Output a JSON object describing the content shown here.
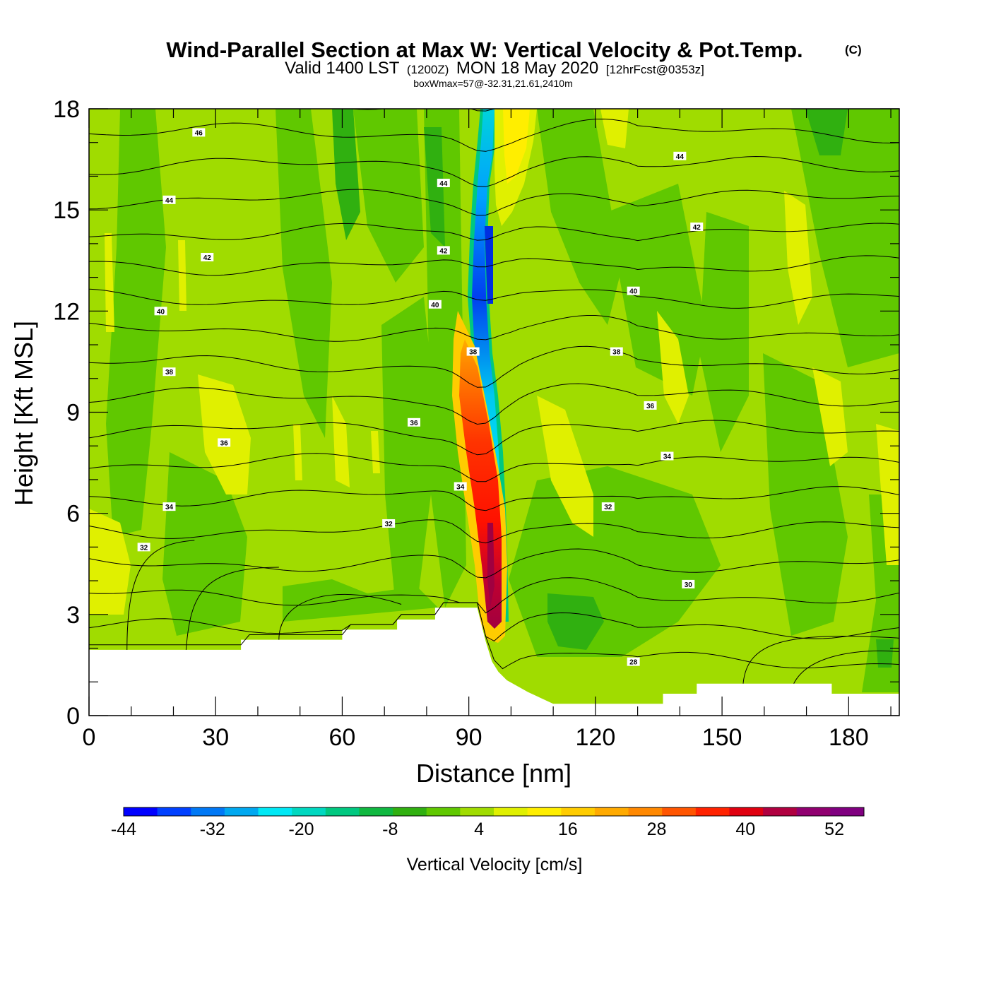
{
  "chart_data": {
    "type": "heatmap",
    "title": "Wind-Parallel Section at Max W: Vertical Velocity & Pot.Temp.",
    "title_mark": "(C)",
    "subtitle_parts": [
      "Valid 1400 LST",
      "(1200Z)",
      "MON 18 May 2020",
      "[12hrFcst@0353z]"
    ],
    "subtitle2": "boxWmax=57@-32.31,21.61,2410m",
    "xlabel": "Distance [nm]",
    "ylabel": "Height [Kft MSL]",
    "xlim": [
      0,
      192
    ],
    "ylim": [
      0,
      18
    ],
    "xticks": [
      0,
      30,
      60,
      90,
      120,
      150,
      180
    ],
    "yticks": [
      0,
      3,
      6,
      9,
      12,
      15,
      18
    ],
    "colorbar": {
      "label": "Vertical Velocity [cm/s]",
      "min": -44,
      "max": 56,
      "ticks": [
        -44,
        -32,
        -20,
        -8,
        4,
        16,
        28,
        40,
        52
      ],
      "colors": [
        "#0000ff",
        "#0040ff",
        "#0078f5",
        "#00a8f0",
        "#00e8f5",
        "#00d8c0",
        "#00c880",
        "#10b840",
        "#30b010",
        "#60c800",
        "#a0dc00",
        "#e0f000",
        "#ffee00",
        "#ffcc00",
        "#ffaa00",
        "#ff8800",
        "#ff5500",
        "#ff2200",
        "#e00010",
        "#b00040",
        "#900070",
        "#800080"
      ]
    },
    "terrain_kft": [
      [
        0,
        1.95
      ],
      [
        36,
        1.95
      ],
      [
        36,
        2.25
      ],
      [
        60,
        2.25
      ],
      [
        60,
        2.55
      ],
      [
        73,
        2.55
      ],
      [
        73,
        2.85
      ],
      [
        82,
        2.85
      ],
      [
        82,
        3.2
      ],
      [
        92,
        3.2
      ],
      [
        94,
        2.2
      ],
      [
        95.5,
        1.6
      ],
      [
        97,
        1.3
      ],
      [
        99,
        1.05
      ],
      [
        104,
        0.7
      ],
      [
        110,
        0.35
      ],
      [
        136,
        0.35
      ],
      [
        136,
        0.65
      ],
      [
        144,
        0.65
      ],
      [
        144,
        0.95
      ],
      [
        176,
        0.95
      ],
      [
        176,
        0.65
      ],
      [
        192,
        0.65
      ]
    ],
    "theta_contour_labels": [
      {
        "x": 26,
        "y": 17.3,
        "v": "46"
      },
      {
        "x": 84,
        "y": 15.8,
        "v": "44"
      },
      {
        "x": 140,
        "y": 16.6,
        "v": "44"
      },
      {
        "x": 19,
        "y": 15.3,
        "v": "44"
      },
      {
        "x": 84,
        "y": 13.8,
        "v": "42"
      },
      {
        "x": 144,
        "y": 14.5,
        "v": "42"
      },
      {
        "x": 28,
        "y": 13.6,
        "v": "42"
      },
      {
        "x": 17,
        "y": 12.0,
        "v": "40"
      },
      {
        "x": 82,
        "y": 12.2,
        "v": "40"
      },
      {
        "x": 129,
        "y": 12.6,
        "v": "40"
      },
      {
        "x": 19,
        "y": 10.2,
        "v": "38"
      },
      {
        "x": 91,
        "y": 10.8,
        "v": "38"
      },
      {
        "x": 125,
        "y": 10.8,
        "v": "38"
      },
      {
        "x": 32,
        "y": 8.1,
        "v": "36"
      },
      {
        "x": 77,
        "y": 8.7,
        "v": "36"
      },
      {
        "x": 133,
        "y": 9.2,
        "v": "36"
      },
      {
        "x": 88,
        "y": 6.8,
        "v": "34"
      },
      {
        "x": 19,
        "y": 6.2,
        "v": "34"
      },
      {
        "x": 137,
        "y": 7.7,
        "v": "34"
      },
      {
        "x": 71,
        "y": 5.7,
        "v": "32"
      },
      {
        "x": 13,
        "y": 5.0,
        "v": "32"
      },
      {
        "x": 123,
        "y": 6.2,
        "v": "32"
      },
      {
        "x": 142,
        "y": 3.9,
        "v": "30"
      },
      {
        "x": 129,
        "y": 1.6,
        "v": "28"
      }
    ]
  }
}
